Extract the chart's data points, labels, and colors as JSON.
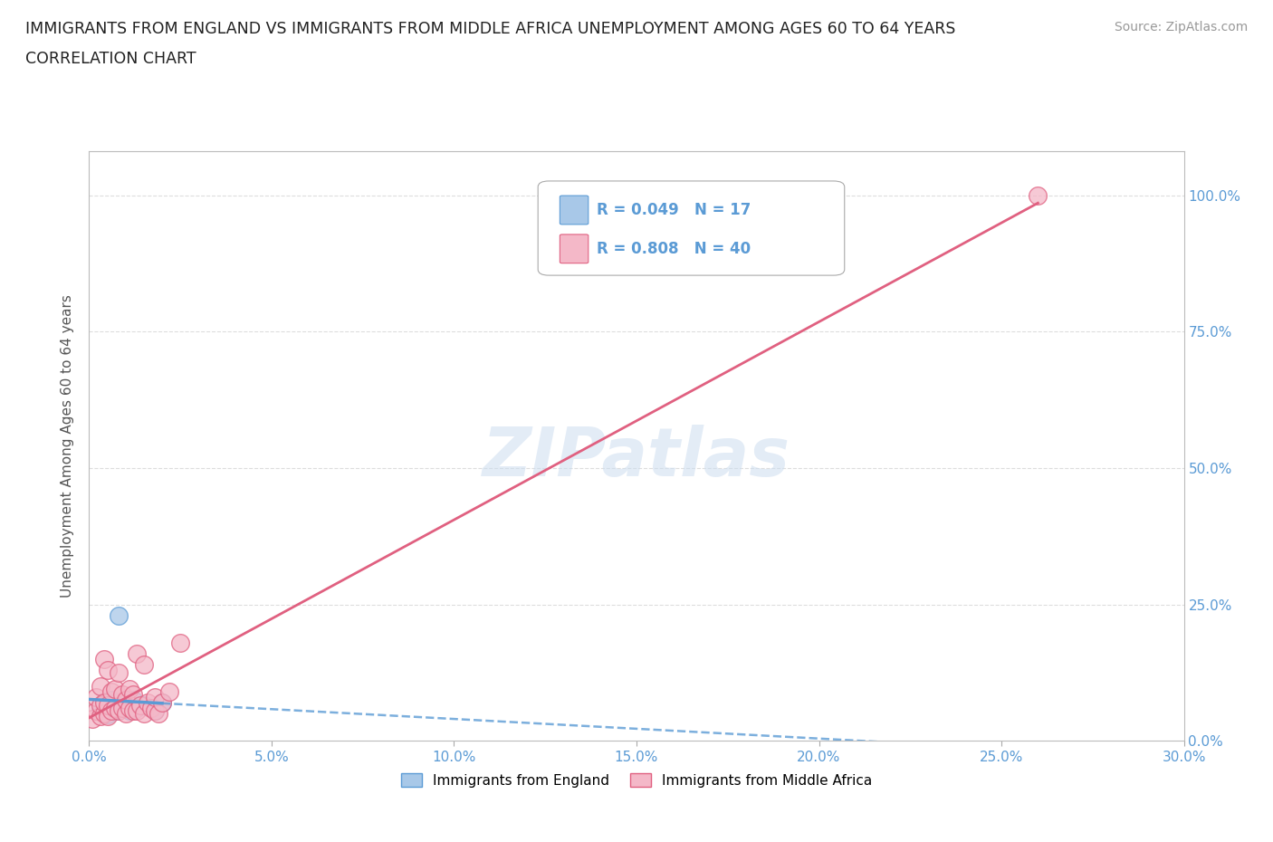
{
  "title_line1": "IMMIGRANTS FROM ENGLAND VS IMMIGRANTS FROM MIDDLE AFRICA UNEMPLOYMENT AMONG AGES 60 TO 64 YEARS",
  "title_line2": "CORRELATION CHART",
  "source_text": "Source: ZipAtlas.com",
  "ylabel": "Unemployment Among Ages 60 to 64 years",
  "xlim": [
    0.0,
    0.3
  ],
  "ylim": [
    0.0,
    1.08
  ],
  "xticks": [
    0.0,
    0.05,
    0.1,
    0.15,
    0.2,
    0.25,
    0.3
  ],
  "yticks": [
    0.0,
    0.25,
    0.5,
    0.75,
    1.0
  ],
  "england_color": "#a8c8e8",
  "england_color_dark": "#5b9bd5",
  "middle_africa_color": "#f4b8c8",
  "middle_africa_color_dark": "#e06080",
  "regression_england_color": "#5b9bd5",
  "regression_africa_color": "#e06080",
  "R_england": 0.049,
  "N_england": 17,
  "R_africa": 0.808,
  "N_africa": 40,
  "england_x": [
    0.003,
    0.004,
    0.004,
    0.005,
    0.005,
    0.006,
    0.007,
    0.007,
    0.008,
    0.009,
    0.01,
    0.011,
    0.012,
    0.013,
    0.015,
    0.018,
    0.02
  ],
  "england_y": [
    0.055,
    0.062,
    0.072,
    0.048,
    0.065,
    0.075,
    0.055,
    0.068,
    0.23,
    0.06,
    0.07,
    0.055,
    0.075,
    0.06,
    0.065,
    0.055,
    0.07
  ],
  "africa_x": [
    0.001,
    0.002,
    0.002,
    0.003,
    0.003,
    0.003,
    0.004,
    0.004,
    0.004,
    0.005,
    0.005,
    0.005,
    0.006,
    0.006,
    0.007,
    0.007,
    0.008,
    0.008,
    0.009,
    0.009,
    0.01,
    0.01,
    0.011,
    0.011,
    0.012,
    0.012,
    0.013,
    0.013,
    0.014,
    0.015,
    0.015,
    0.016,
    0.017,
    0.018,
    0.018,
    0.019,
    0.02,
    0.022,
    0.025,
    0.26
  ],
  "africa_y": [
    0.04,
    0.055,
    0.08,
    0.045,
    0.065,
    0.1,
    0.05,
    0.07,
    0.15,
    0.045,
    0.065,
    0.13,
    0.055,
    0.09,
    0.06,
    0.095,
    0.055,
    0.125,
    0.06,
    0.085,
    0.05,
    0.075,
    0.06,
    0.095,
    0.055,
    0.085,
    0.055,
    0.16,
    0.065,
    0.05,
    0.14,
    0.07,
    0.06,
    0.055,
    0.08,
    0.05,
    0.07,
    0.09,
    0.18,
    1.0
  ],
  "watermark_text": "ZIPatlas",
  "background_color": "#ffffff",
  "grid_color": "#dddddd",
  "title_color": "#222222",
  "axis_color": "#5b9bd5",
  "legend_label_england": "Immigrants from England",
  "legend_label_africa": "Immigrants from Middle Africa"
}
